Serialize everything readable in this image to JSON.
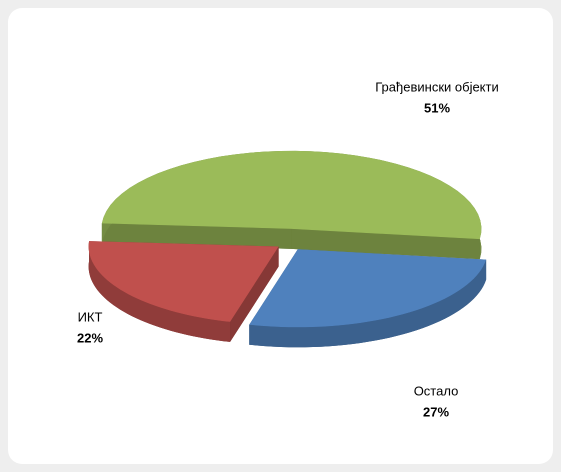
{
  "chart_data": {
    "type": "pie",
    "categories": [
      "Грађевински објекти",
      "Остало",
      "ИКТ"
    ],
    "values": [
      51,
      27,
      22
    ],
    "value_labels": [
      "51%",
      "27%",
      "22%"
    ],
    "colors": [
      "#9bbb59",
      "#4f81bd",
      "#c0504d"
    ]
  }
}
